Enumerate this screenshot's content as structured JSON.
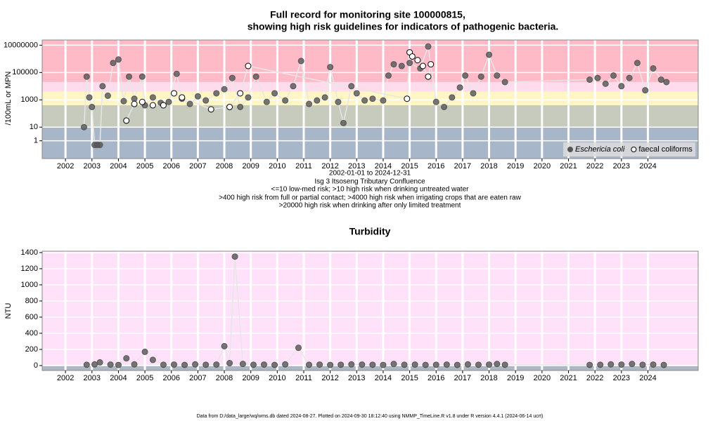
{
  "chart_data": [
    {
      "type": "scatter",
      "title_lines": [
        "Full record for monitoring site 100000815,",
        "showing high risk guidelines for indicators of pathogenic bacteria."
      ],
      "y_label": "/100mL or MPN",
      "yscale": "log",
      "ylim": [
        0.05,
        24000000
      ],
      "yticks": [
        1,
        10,
        1000,
        100000,
        10000000
      ],
      "xlim": [
        2001.12,
        2025.9
      ],
      "xticks": [
        2002,
        2003,
        2004,
        2005,
        2006,
        2007,
        2008,
        2009,
        2010,
        2011,
        2012,
        2013,
        2014,
        2015,
        2016,
        2017,
        2018,
        2019,
        2020,
        2021,
        2022,
        2023,
        2024
      ],
      "thresholds": [
        10,
        400,
        4000,
        20000
      ],
      "band_colors": [
        "#a8b6ca",
        "#c6cbbd",
        "#fff6c4",
        "#ffdcec",
        "#ffbac8"
      ],
      "grid": true,
      "legend": "bottom-right",
      "annotations": [
        "2002-01-01 to 2024-12-31",
        "Isg 3 Itsoseng Tributary Confluence",
        "<=10 low-med risk; >10 high risk when drinking untreated water",
        ">400 high risk from full or partial contact; >4000 high risk when irrigating crops that are eaten raw",
        ">20000 high risk when drinking after only limited treatment"
      ],
      "series": [
        {
          "name": "Eschericia coli",
          "color": "#555555",
          "marker": "filled",
          "x": [
            2002.7,
            2002.8,
            2002.9,
            2003.0,
            2003.1,
            2003.2,
            2003.3,
            2003.4,
            2003.6,
            2003.8,
            2004.0,
            2004.2,
            2004.4,
            2004.6,
            2004.9,
            2005.0,
            2005.3,
            2005.6,
            2005.9,
            2006.2,
            2006.4,
            2006.7,
            2007.0,
            2007.3,
            2007.7,
            2008.0,
            2008.3,
            2008.6,
            2008.9,
            2009.2,
            2009.6,
            2009.9,
            2010.3,
            2010.6,
            2010.9,
            2011.2,
            2011.5,
            2011.8,
            2012.0,
            2012.3,
            2012.5,
            2012.8,
            2013.0,
            2013.3,
            2013.6,
            2014.0,
            2014.2,
            2014.4,
            2014.7,
            2015.0,
            2015.4,
            2015.7,
            2016.0,
            2016.3,
            2016.6,
            2016.9,
            2017.1,
            2017.4,
            2017.7,
            2018.0,
            2018.3,
            2018.6,
            2021.8,
            2022.1,
            2022.4,
            2022.7,
            2023.0,
            2023.3,
            2023.6,
            2023.9,
            2024.2,
            2024.5,
            2024.7
          ],
          "values": [
            10,
            50000,
            1500,
            300,
            0.5,
            0.5,
            0.5,
            10000,
            2000,
            500000,
            900000,
            800,
            50000,
            1200,
            50000,
            400,
            1500,
            600,
            700,
            80000,
            1200,
            500,
            1800,
            900,
            3000,
            6000,
            40000,
            300,
            1500,
            50000,
            700,
            3000,
            900,
            10000,
            700000,
            500,
            900,
            1500,
            250000,
            700,
            20,
            10000,
            3000,
            900,
            1200,
            900,
            60000,
            400000,
            300000,
            500000,
            200000,
            8000000,
            700,
            300,
            1500,
            8000,
            60000,
            3000,
            50000,
            2000000,
            60000,
            20000,
            30000,
            40000,
            15000,
            60000,
            10000,
            40000,
            500000,
            5000,
            200000,
            30000,
            20000
          ]
        },
        {
          "name": "faecal coliforms",
          "color": "#ffffff",
          "marker": "open",
          "x": [
            2004.3,
            2004.6,
            2004.9,
            2005.3,
            2005.7,
            2006.1,
            2006.4,
            2007.5,
            2008.2,
            2008.6,
            2008.9,
            2014.9,
            2015.0,
            2015.1,
            2015.3,
            2015.5,
            2015.7,
            2015.8
          ],
          "values": [
            30,
            500,
            700,
            400,
            400,
            3000,
            1500,
            200,
            300,
            3000,
            300000,
            1200,
            3000000,
            1500000,
            800000,
            300000,
            50000,
            400000
          ]
        }
      ]
    },
    {
      "type": "scatter",
      "title": "Turbidity",
      "y_label": "NTU",
      "ylim": [
        -61,
        1417
      ],
      "yticks": [
        0,
        200,
        400,
        600,
        800,
        1000,
        1200,
        1400
      ],
      "xlim": [
        2001.12,
        2025.9
      ],
      "xticks": [
        2002,
        2003,
        2004,
        2005,
        2006,
        2007,
        2008,
        2009,
        2010,
        2011,
        2012,
        2013,
        2014,
        2015,
        2016,
        2017,
        2018,
        2019,
        2020,
        2021,
        2022,
        2023,
        2024
      ],
      "thresholds": [
        0
      ],
      "band_colors": [
        "#aeb8c4",
        "#ffe2fa"
      ],
      "grid": true,
      "series": [
        {
          "name": "Turbidity",
          "color": "#555555",
          "marker": "filled",
          "x": [
            2002.8,
            2003.1,
            2003.3,
            2003.7,
            2004.0,
            2004.3,
            2004.6,
            2005.0,
            2005.3,
            2005.7,
            2006.1,
            2006.5,
            2006.9,
            2007.3,
            2007.7,
            2008.0,
            2008.2,
            2008.4,
            2008.7,
            2009.1,
            2009.5,
            2009.9,
            2010.3,
            2010.8,
            2011.2,
            2011.6,
            2012.0,
            2012.4,
            2012.8,
            2013.2,
            2013.6,
            2014.0,
            2014.4,
            2014.8,
            2015.2,
            2015.6,
            2016.0,
            2016.4,
            2016.8,
            2017.2,
            2017.6,
            2018.0,
            2018.3,
            2018.6,
            2021.8,
            2022.2,
            2022.6,
            2023.0,
            2023.4,
            2023.8,
            2024.2,
            2024.6
          ],
          "values": [
            10,
            15,
            40,
            12,
            8,
            90,
            15,
            170,
            70,
            10,
            12,
            8,
            15,
            10,
            12,
            240,
            30,
            1350,
            20,
            10,
            12,
            8,
            15,
            220,
            10,
            12,
            8,
            10,
            15,
            12,
            10,
            8,
            20,
            10,
            12,
            8,
            10,
            12,
            8,
            15,
            10,
            12,
            20,
            10,
            8,
            10,
            15,
            12,
            20,
            10,
            12,
            8
          ]
        }
      ]
    }
  ],
  "footer": "Data from D:/data_large/wq/wms.db dated 2024-08-27. Plotted on 2024-09-30 18:12:40 using NMMP_TimeLine.R v1.8 under R version 4.4.1 (2024-06-14 ucrt)"
}
